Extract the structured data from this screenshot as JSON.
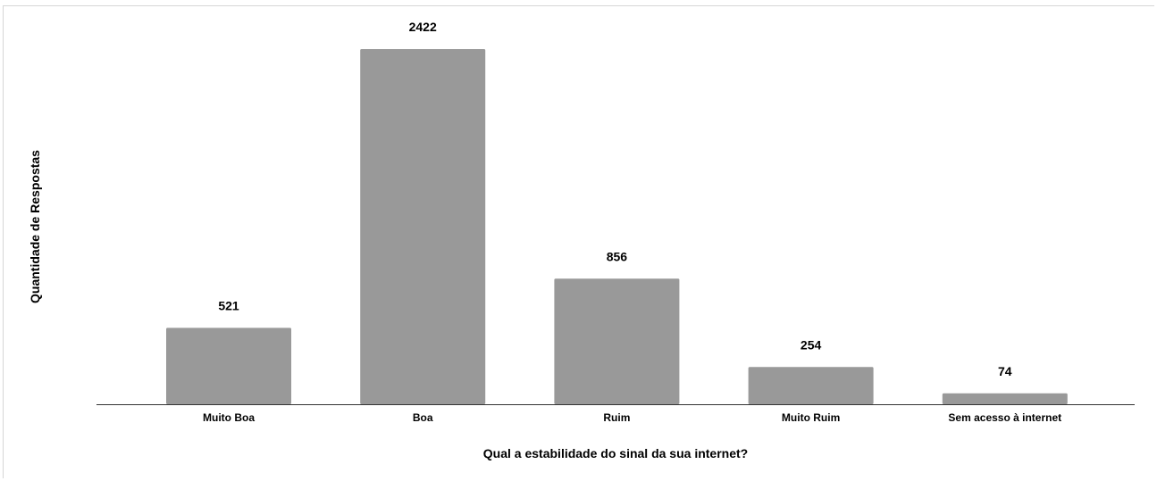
{
  "chart_data": {
    "type": "bar",
    "categories": [
      "Muito Boa",
      "Boa",
      "Ruim",
      "Muito Ruim",
      "Sem acesso à internet"
    ],
    "values": [
      521,
      2422,
      856,
      254,
      74
    ],
    "data_labels": [
      "521",
      "2422",
      "856",
      "254",
      "74"
    ],
    "xlabel": "Qual a estabilidade do sinal da sua internet?",
    "ylabel": "Quantidade de Respostas",
    "ylim": [
      0,
      2422
    ],
    "grid": false,
    "legend": "none",
    "bar_color": "#999999"
  }
}
